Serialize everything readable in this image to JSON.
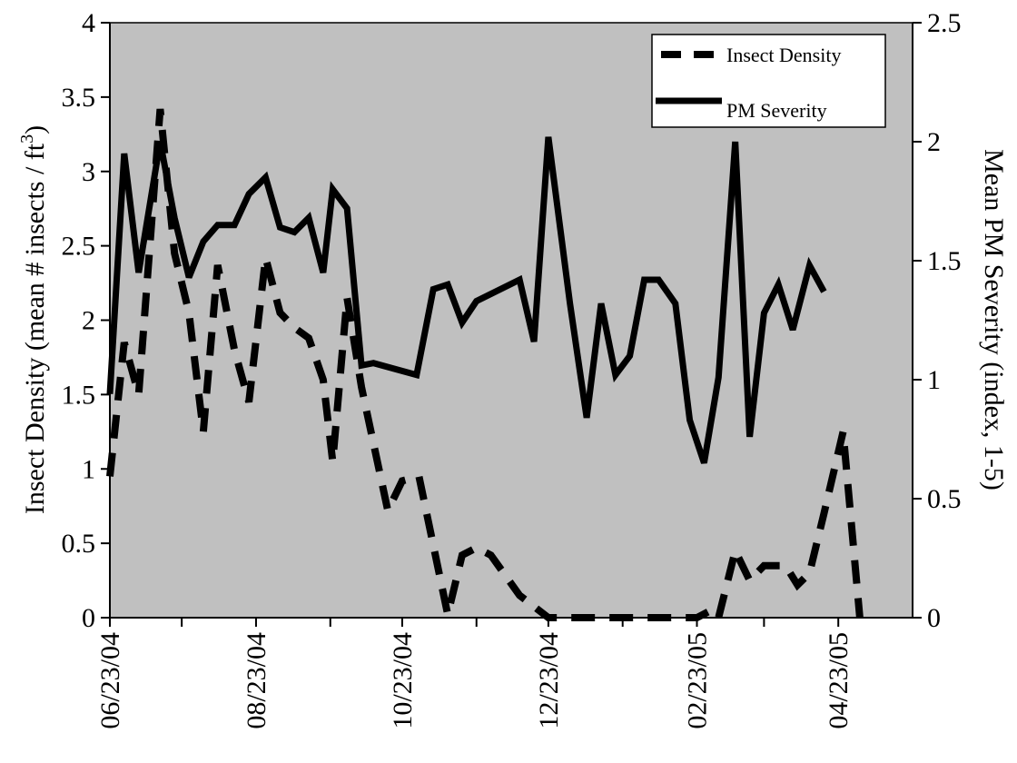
{
  "chart_data": {
    "type": "line",
    "background_color": "#c0c0c0",
    "line_color": "#000000",
    "grid": false,
    "legend_position": "top-right",
    "y_left": {
      "label_main": "Insect Density (mean # insects / ft",
      "label_sup": "3",
      "label_end": ")",
      "range": [
        0,
        4
      ],
      "ticks": [
        0,
        0.5,
        1,
        1.5,
        2,
        2.5,
        3,
        3.5,
        4
      ],
      "tick_labels": [
        "0",
        "0.5",
        "1",
        "1.5",
        "2",
        "2.5",
        "3",
        "3.5",
        "4"
      ]
    },
    "y_right": {
      "label": "Mean PM Severity (index, 1-5)",
      "range": [
        0,
        2.5
      ],
      "ticks": [
        0,
        0.5,
        1,
        1.5,
        2,
        2.5
      ],
      "tick_labels": [
        "0",
        "0.5",
        "1",
        "1.5",
        "2",
        "2.5"
      ]
    },
    "x_axis": {
      "range": [
        "2004-06-23",
        "2005-05-24"
      ],
      "minor_ticks": [
        "2004-06-23",
        "2004-07-23",
        "2004-08-23",
        "2004-09-23",
        "2004-10-23",
        "2004-11-23",
        "2004-12-23",
        "2005-01-23",
        "2005-02-23",
        "2005-03-23",
        "2005-04-23"
      ],
      "labels": [
        {
          "date": "2004-06-23",
          "text": "06/23/04"
        },
        {
          "date": "2004-08-23",
          "text": "08/23/04"
        },
        {
          "date": "2004-10-23",
          "text": "10/23/04"
        },
        {
          "date": "2004-12-23",
          "text": "12/23/04"
        },
        {
          "date": "2005-02-23",
          "text": "02/23/05"
        },
        {
          "date": "2005-04-23",
          "text": "04/23/05"
        }
      ]
    },
    "series": [
      {
        "name": "Insect Density",
        "axis": "left",
        "style": "dashed",
        "points": [
          [
            "2004-06-23",
            0.95
          ],
          [
            "2004-06-29",
            1.85
          ],
          [
            "2004-07-05",
            1.5
          ],
          [
            "2004-07-14",
            3.42
          ],
          [
            "2004-07-20",
            2.45
          ],
          [
            "2004-07-26",
            2.05
          ],
          [
            "2004-08-01",
            1.25
          ],
          [
            "2004-08-07",
            2.37
          ],
          [
            "2004-08-14",
            1.8
          ],
          [
            "2004-08-20",
            1.45
          ],
          [
            "2004-08-27",
            2.42
          ],
          [
            "2004-09-02",
            2.05
          ],
          [
            "2004-09-08",
            1.95
          ],
          [
            "2004-09-14",
            1.88
          ],
          [
            "2004-09-20",
            1.6
          ],
          [
            "2004-09-24",
            1.05
          ],
          [
            "2004-09-30",
            2.15
          ],
          [
            "2004-10-06",
            1.55
          ],
          [
            "2004-10-17",
            0.72
          ],
          [
            "2004-10-23",
            0.92
          ],
          [
            "2004-10-30",
            0.95
          ],
          [
            "2004-11-11",
            0.02
          ],
          [
            "2004-11-17",
            0.42
          ],
          [
            "2004-11-23",
            0.47
          ],
          [
            "2004-11-29",
            0.42
          ],
          [
            "2004-12-11",
            0.15
          ],
          [
            "2004-12-23",
            0.0
          ],
          [
            "2005-01-23",
            0.0
          ],
          [
            "2005-02-23",
            0.0
          ],
          [
            "2005-03-01",
            0.05
          ],
          [
            "2005-03-04",
            0.0
          ],
          [
            "2005-03-11",
            0.45
          ],
          [
            "2005-03-17",
            0.25
          ],
          [
            "2005-03-23",
            0.35
          ],
          [
            "2005-04-01",
            0.35
          ],
          [
            "2005-04-06",
            0.22
          ],
          [
            "2005-04-11",
            0.3
          ],
          [
            "2005-04-17",
            0.7
          ],
          [
            "2005-04-25",
            1.25
          ],
          [
            "2005-05-02",
            0.0
          ]
        ]
      },
      {
        "name": "PM Severity",
        "axis": "right",
        "style": "solid",
        "points": [
          [
            "2004-06-23",
            0.94
          ],
          [
            "2004-06-29",
            1.95
          ],
          [
            "2004-07-05",
            1.45
          ],
          [
            "2004-07-14",
            2.0
          ],
          [
            "2004-07-20",
            1.68
          ],
          [
            "2004-07-26",
            1.43
          ],
          [
            "2004-08-01",
            1.58
          ],
          [
            "2004-08-07",
            1.65
          ],
          [
            "2004-08-14",
            1.65
          ],
          [
            "2004-08-20",
            1.78
          ],
          [
            "2004-08-27",
            1.85
          ],
          [
            "2004-09-02",
            1.64
          ],
          [
            "2004-09-08",
            1.62
          ],
          [
            "2004-09-14",
            1.68
          ],
          [
            "2004-09-20",
            1.45
          ],
          [
            "2004-09-24",
            1.8
          ],
          [
            "2004-09-30",
            1.72
          ],
          [
            "2004-10-06",
            1.06
          ],
          [
            "2004-10-11",
            1.07
          ],
          [
            "2004-10-29",
            1.02
          ],
          [
            "2004-11-05",
            1.38
          ],
          [
            "2004-11-11",
            1.4
          ],
          [
            "2004-11-17",
            1.24
          ],
          [
            "2004-11-23",
            1.33
          ],
          [
            "2004-12-11",
            1.42
          ],
          [
            "2004-12-17",
            1.16
          ],
          [
            "2004-12-23",
            2.02
          ],
          [
            "2005-01-01",
            1.32
          ],
          [
            "2005-01-08",
            0.84
          ],
          [
            "2005-01-14",
            1.32
          ],
          [
            "2005-01-20",
            1.02
          ],
          [
            "2005-01-26",
            1.1
          ],
          [
            "2005-02-01",
            1.42
          ],
          [
            "2005-02-07",
            1.42
          ],
          [
            "2005-02-14",
            1.32
          ],
          [
            "2005-02-20",
            0.83
          ],
          [
            "2005-02-26",
            0.65
          ],
          [
            "2005-03-04",
            1.01
          ],
          [
            "2005-03-11",
            2.0
          ],
          [
            "2005-03-17",
            0.76
          ],
          [
            "2005-03-23",
            1.28
          ],
          [
            "2005-03-29",
            1.4
          ],
          [
            "2005-04-04",
            1.21
          ],
          [
            "2005-04-11",
            1.48
          ],
          [
            "2005-04-17",
            1.37
          ]
        ]
      }
    ]
  }
}
